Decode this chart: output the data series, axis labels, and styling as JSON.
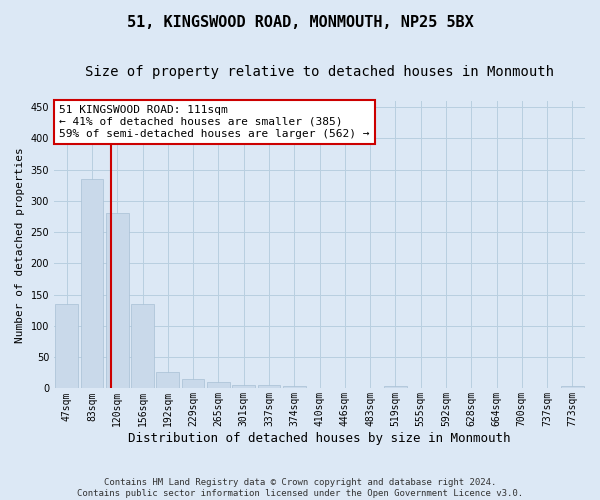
{
  "title": "51, KINGSWOOD ROAD, MONMOUTH, NP25 5BX",
  "subtitle": "Size of property relative to detached houses in Monmouth",
  "xlabel": "Distribution of detached houses by size in Monmouth",
  "ylabel": "Number of detached properties",
  "categories": [
    "47sqm",
    "83sqm",
    "120sqm",
    "156sqm",
    "192sqm",
    "229sqm",
    "265sqm",
    "301sqm",
    "337sqm",
    "374sqm",
    "410sqm",
    "446sqm",
    "483sqm",
    "519sqm",
    "555sqm",
    "592sqm",
    "628sqm",
    "664sqm",
    "700sqm",
    "737sqm",
    "773sqm"
  ],
  "values": [
    135,
    335,
    280,
    135,
    27,
    15,
    10,
    6,
    5,
    4,
    0,
    0,
    0,
    4,
    0,
    0,
    0,
    0,
    0,
    0,
    4
  ],
  "bar_color": "#c9d9ea",
  "bar_edge_color": "#a8bfd4",
  "grid_color": "#b8cfe0",
  "background_color": "#dce8f5",
  "red_line_x": 1.75,
  "annotation_text": "51 KINGSWOOD ROAD: 111sqm\n← 41% of detached houses are smaller (385)\n59% of semi-detached houses are larger (562) →",
  "annotation_box_color": "#ffffff",
  "annotation_box_edge": "#cc0000",
  "annotation_text_color": "#000000",
  "ylim": [
    0,
    460
  ],
  "yticks": [
    0,
    50,
    100,
    150,
    200,
    250,
    300,
    350,
    400,
    450
  ],
  "footer": "Contains HM Land Registry data © Crown copyright and database right 2024.\nContains public sector information licensed under the Open Government Licence v3.0.",
  "title_fontsize": 11,
  "subtitle_fontsize": 10,
  "xlabel_fontsize": 9,
  "ylabel_fontsize": 8,
  "tick_fontsize": 7,
  "annotation_fontsize": 8,
  "footer_fontsize": 6.5
}
